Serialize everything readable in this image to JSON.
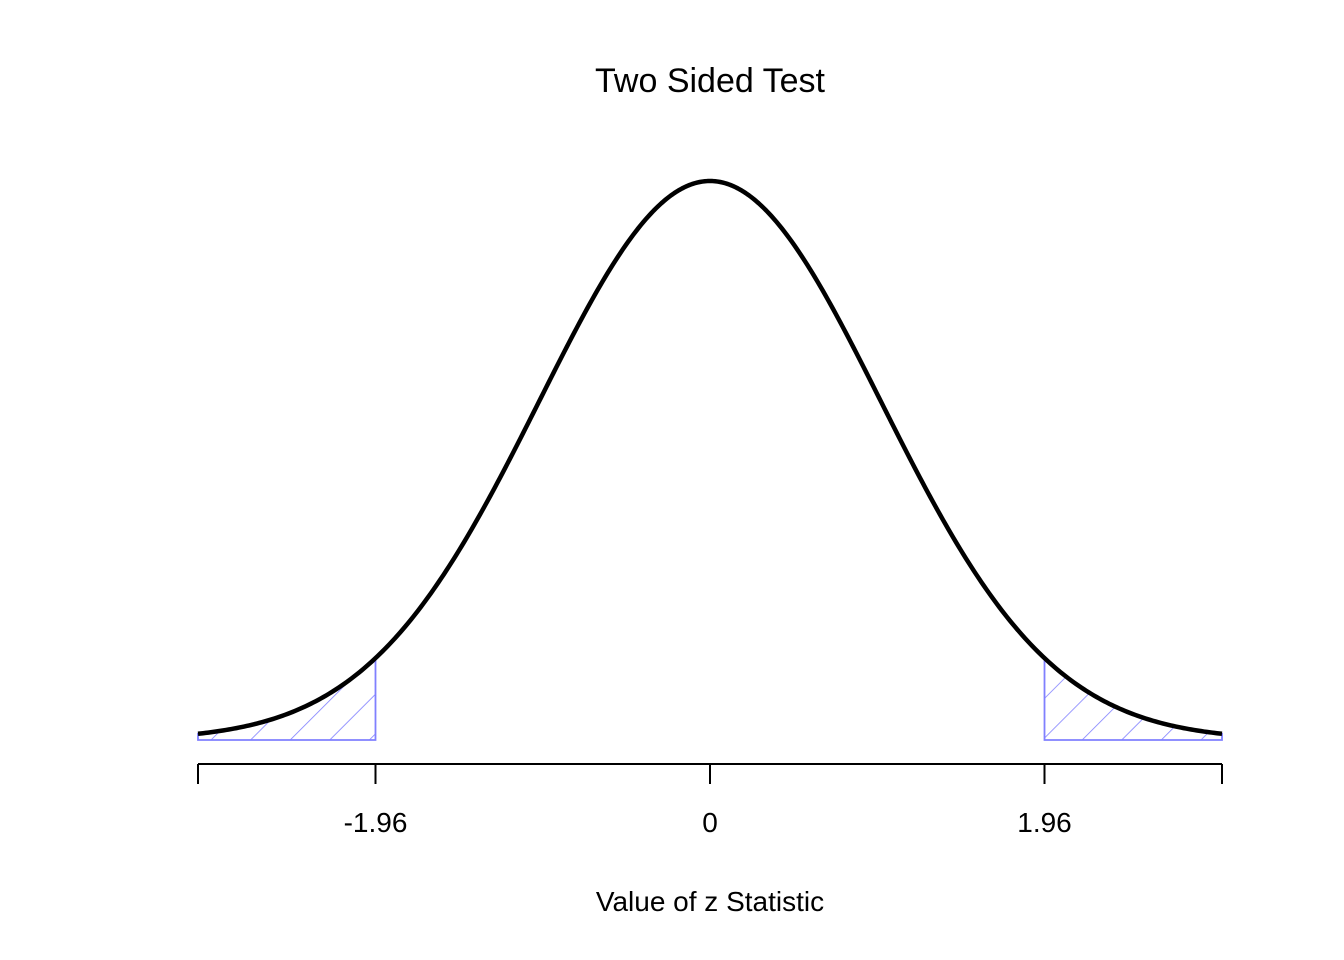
{
  "chart_data": {
    "type": "line",
    "title": "Two Sided Test",
    "xlabel": "Value of z Statistic",
    "ylabel": "",
    "xlim": [
      -3,
      3
    ],
    "ylim": [
      0,
      0.4
    ],
    "distribution": "standard normal",
    "curve_color": "#000000",
    "shade_color": "#8080ff",
    "critical_values": [
      -1.96,
      1.96
    ],
    "tick_values": [
      -3,
      -1.96,
      0,
      1.96,
      3
    ],
    "tick_labels": [
      "",
      "-1.96",
      "0",
      "1.96",
      ""
    ],
    "shaded_regions": [
      {
        "from": -3,
        "to": -1.96
      },
      {
        "from": 1.96,
        "to": 3
      }
    ],
    "grid": false,
    "legend": "none"
  }
}
